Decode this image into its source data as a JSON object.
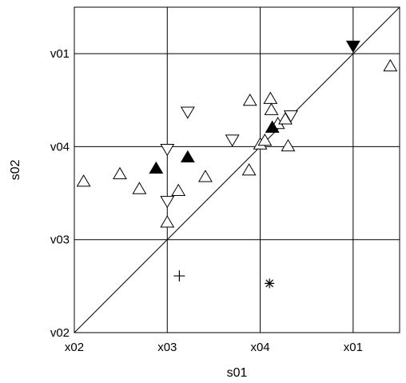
{
  "chart_data": {
    "type": "scatter",
    "xlabel": "s01",
    "ylabel": "s02",
    "xlim": [
      0,
      3.5
    ],
    "ylim": [
      0,
      3.5
    ],
    "grid": true,
    "xticks": [
      {
        "value": 0,
        "label": "x02"
      },
      {
        "value": 1,
        "label": "x03"
      },
      {
        "value": 2,
        "label": "x04"
      },
      {
        "value": 3,
        "label": "x01"
      }
    ],
    "yticks": [
      {
        "value": 0,
        "label": "v02"
      },
      {
        "value": 1,
        "label": "v03"
      },
      {
        "value": 2,
        "label": "v04"
      },
      {
        "value": 3,
        "label": "v01"
      }
    ],
    "reference_line": {
      "from": [
        0,
        0
      ],
      "to": [
        3.5,
        3.5
      ]
    },
    "series": [
      {
        "marker": "triangle-up-open",
        "points": [
          {
            "x": 0.1,
            "y": 1.62
          },
          {
            "x": 0.49,
            "y": 1.7
          },
          {
            "x": 0.7,
            "y": 1.54
          },
          {
            "x": 1.0,
            "y": 1.18
          },
          {
            "x": 1.12,
            "y": 1.52
          },
          {
            "x": 1.41,
            "y": 1.67
          },
          {
            "x": 1.88,
            "y": 1.74
          },
          {
            "x": 2.0,
            "y": 2.02
          },
          {
            "x": 2.05,
            "y": 2.06
          },
          {
            "x": 1.89,
            "y": 2.49
          },
          {
            "x": 2.11,
            "y": 2.51
          },
          {
            "x": 2.12,
            "y": 2.39
          },
          {
            "x": 2.19,
            "y": 2.24
          },
          {
            "x": 2.27,
            "y": 2.29
          },
          {
            "x": 2.3,
            "y": 2.0
          },
          {
            "x": 3.4,
            "y": 2.86
          }
        ]
      },
      {
        "marker": "triangle-down-open",
        "points": [
          {
            "x": 1.0,
            "y": 1.98
          },
          {
            "x": 1.0,
            "y": 1.42
          },
          {
            "x": 1.22,
            "y": 2.38
          },
          {
            "x": 1.7,
            "y": 2.08
          },
          {
            "x": 2.33,
            "y": 2.34
          }
        ]
      },
      {
        "marker": "triangle-up-filled",
        "points": [
          {
            "x": 0.88,
            "y": 1.76
          },
          {
            "x": 1.22,
            "y": 1.88
          },
          {
            "x": 2.13,
            "y": 2.2
          }
        ]
      },
      {
        "marker": "triangle-down-filled",
        "points": [
          {
            "x": 3.0,
            "y": 3.09
          }
        ]
      },
      {
        "marker": "plus",
        "points": [
          {
            "x": 1.13,
            "y": 0.61
          }
        ]
      },
      {
        "marker": "asterisk",
        "points": [
          {
            "x": 2.1,
            "y": 0.53
          }
        ]
      }
    ]
  }
}
